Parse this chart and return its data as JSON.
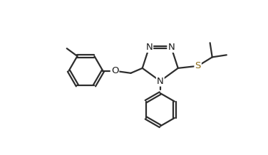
{
  "bg_color": "#ffffff",
  "line_color": "#2d2d2d",
  "N_color": "#1a1a1a",
  "S_color": "#8B6914",
  "O_color": "#1a1a1a",
  "line_width": 1.6,
  "font_size": 9.5,
  "figsize": [
    3.76,
    2.18
  ],
  "dpi": 100,
  "xlim": [
    0.0,
    9.5
  ],
  "ylim": [
    0.2,
    5.8
  ]
}
